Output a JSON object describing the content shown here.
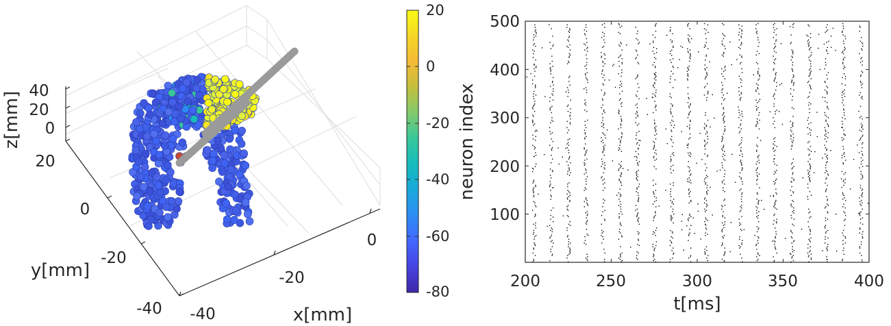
{
  "colors": {
    "colormap": [
      "#3e26a8",
      "#4743e0",
      "#4367fd",
      "#2d8cf4",
      "#1aa9db",
      "#16bcbc",
      "#38c79a",
      "#81ca6c",
      "#c4bf3e",
      "#f4ba36",
      "#f5d626",
      "#f9fb15"
    ],
    "neuron_dot": "#4a63e8",
    "electrode": "#9a9a9a",
    "axis": "#262626",
    "grid": "#dcdcdc"
  },
  "left_panel": {
    "type": "3d-scatter",
    "xlabel": "x[mm]",
    "ylabel": "y[mm]",
    "zlabel": "z[mm]",
    "x_ticks": [
      "-40",
      "-20",
      "0"
    ],
    "y_ticks": [
      "-40",
      "-20",
      "0",
      "20"
    ],
    "z_ticks": [
      "0",
      "20",
      "40"
    ],
    "colorbar": {
      "ticks": [
        "20",
        "0",
        "-20",
        "-40",
        "-60",
        "-80"
      ],
      "range": [
        -80,
        20
      ]
    }
  },
  "chart_data": {
    "type": "scatter",
    "subtype": "raster",
    "title": "",
    "xlabel": "t[ms]",
    "ylabel": "neuron index",
    "xlim": [
      200,
      400
    ],
    "ylim": [
      0,
      500
    ],
    "x_ticks": [
      "200",
      "250",
      "300",
      "350",
      "400"
    ],
    "y_ticks": [
      "100",
      "200",
      "300",
      "400",
      "500"
    ],
    "burst_times_ms": [
      205,
      215,
      225,
      235,
      245,
      255,
      265,
      275,
      285,
      295,
      305,
      315,
      325,
      335,
      345,
      355,
      365,
      375,
      385,
      395
    ],
    "grid": false,
    "legend": "none"
  }
}
